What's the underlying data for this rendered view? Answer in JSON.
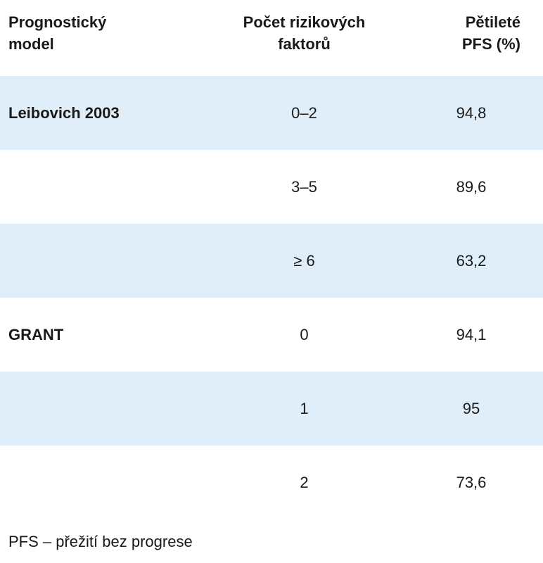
{
  "table": {
    "headers": [
      "Prognostický\nmodel",
      "Počet rizikových\nfaktorů",
      "Pětileté\nPFS (%)"
    ],
    "rows": [
      {
        "model": "Leibovich 2003",
        "factors": "0–2",
        "pfs": "94,8",
        "shaded": true
      },
      {
        "model": "",
        "factors": "3–5",
        "pfs": "89,6",
        "shaded": false
      },
      {
        "model": "",
        "factors": "≥ 6",
        "pfs": "63,2",
        "shaded": true
      },
      {
        "model": "GRANT",
        "factors": "0",
        "pfs": "94,1",
        "shaded": false
      },
      {
        "model": "",
        "factors": "1",
        "pfs": "95",
        "shaded": true
      },
      {
        "model": "",
        "factors": "2",
        "pfs": "73,6",
        "shaded": false
      }
    ]
  },
  "footnote": "PFS – přežití bez progrese",
  "colors": {
    "shaded_row": "#dfeef9",
    "text": "#1a1a1a"
  }
}
